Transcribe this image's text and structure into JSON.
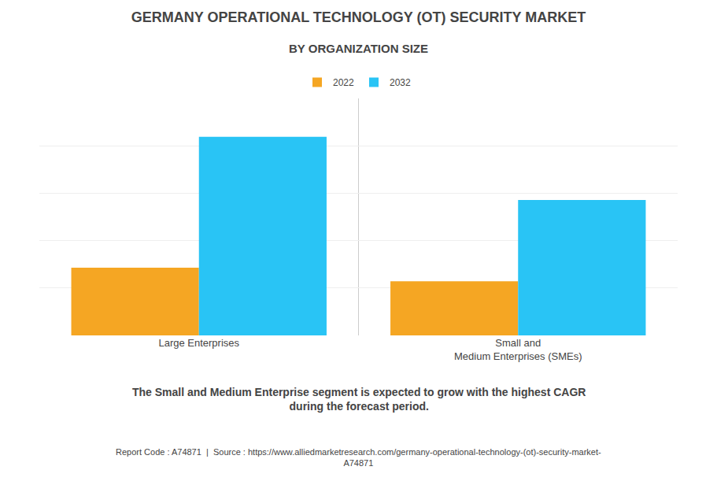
{
  "chart_data": {
    "type": "bar",
    "title": "GERMANY OPERATIONAL TECHNOLOGY (OT) SECURITY MARKET",
    "subtitle": "BY ORGANIZATION SIZE",
    "categories": [
      "Large Enterprises",
      "Small and\nMedium Enterprises (SMEs)"
    ],
    "series": [
      {
        "name": "2022",
        "color": "#F5A623",
        "values": [
          0.3,
          0.24
        ]
      },
      {
        "name": "2032",
        "color": "#29C4F5",
        "values": [
          0.88,
          0.6
        ]
      }
    ],
    "ylim": [
      0,
      1.05
    ],
    "yticks": [
      0,
      0.21,
      0.42,
      0.63,
      0.84,
      1.05
    ],
    "grid": true,
    "tick_labels": "x",
    "legend": "top",
    "annotations": [
      "The Small and Medium Enterprise segment is expected to grow with the highest CAGR\nduring the forecast period.",
      "Report Code : A74871  |  Source : https://www.alliedmarketresearch.com/germany-operational-technology-(ot)-security-market-\nA74871"
    ]
  }
}
